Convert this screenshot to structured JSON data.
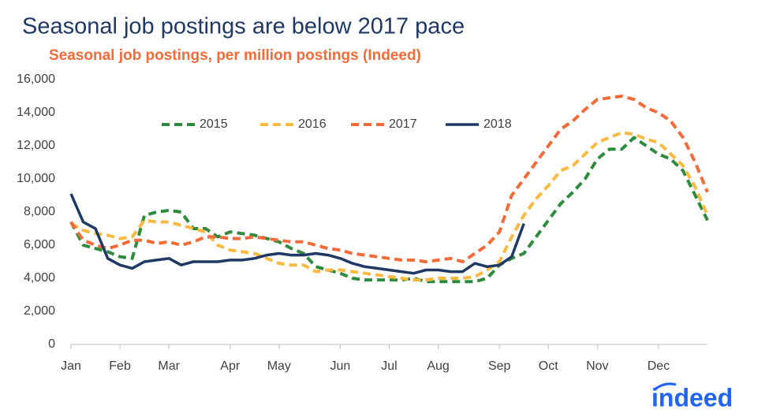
{
  "chart_data": {
    "type": "line",
    "title": "Seasonal job postings are below 2017 pace",
    "subtitle": "Seasonal job postings, per million postings (Indeed)",
    "logo": "indeed",
    "categories": [
      "Jan",
      null,
      null,
      null,
      "Feb",
      null,
      null,
      null,
      "Mar",
      null,
      null,
      null,
      null,
      "Apr",
      null,
      null,
      null,
      "May",
      null,
      null,
      null,
      null,
      "Jun",
      null,
      null,
      null,
      "Jul",
      null,
      null,
      null,
      "Aug",
      null,
      null,
      null,
      null,
      "Sep",
      null,
      null,
      null,
      "Oct",
      null,
      null,
      null,
      "Nov",
      null,
      null,
      null,
      null,
      "Dec",
      null,
      null,
      null,
      null
    ],
    "ylim": [
      0,
      16000
    ],
    "yticks": [
      0,
      {
        "value": 2000,
        "label": "2,000"
      },
      {
        "value": 4000,
        "label": "4,000"
      },
      {
        "value": 6000,
        "label": "6,000"
      },
      {
        "value": 8000,
        "label": "8,000"
      },
      {
        "value": 10000,
        "label": "10,000"
      },
      {
        "value": 12000,
        "label": "12,000"
      },
      {
        "value": 14000,
        "label": "14,000"
      },
      {
        "value": 16000,
        "label": "16,000"
      }
    ],
    "grid": false,
    "legend": "top",
    "series": [
      {
        "name": "2015",
        "color": "#2e8b3e",
        "dashed": true,
        "values": [
          7400,
          6000,
          5800,
          5600,
          5300,
          5200,
          7800,
          8000,
          8100,
          8000,
          7000,
          7000,
          6500,
          6800,
          6700,
          6600,
          6400,
          6200,
          5800,
          5500,
          4700,
          4500,
          4300,
          4000,
          3900,
          3900,
          3900,
          3900,
          4000,
          3800,
          3800,
          3800,
          3800,
          3800,
          4000,
          4800,
          5200,
          5500,
          6500,
          7500,
          8500,
          9200,
          10000,
          11200,
          11800,
          11800,
          12500,
          12000,
          11500,
          11200,
          10500,
          9000,
          7500
        ]
      },
      {
        "name": "2016",
        "color": "#fbb93f",
        "dashed": true,
        "values": [
          7300,
          6900,
          6700,
          6600,
          6400,
          6500,
          7500,
          7400,
          7400,
          7200,
          7000,
          6800,
          6000,
          5700,
          5600,
          5500,
          5200,
          4900,
          4800,
          4800,
          4400,
          4500,
          4500,
          4400,
          4300,
          4200,
          4100,
          4000,
          3900,
          3900,
          4000,
          4000,
          4000,
          4100,
          4500,
          5000,
          6500,
          7800,
          8800,
          9600,
          10500,
          10800,
          11500,
          12200,
          12500,
          12800,
          12700,
          12400,
          12200,
          11500,
          10800,
          9500,
          7800
        ]
      },
      {
        "name": "2017",
        "color": "#f26b38",
        "dashed": true,
        "values": [
          7400,
          6300,
          6000,
          5800,
          6000,
          6300,
          6300,
          6100,
          6200,
          6000,
          6200,
          6500,
          6500,
          6400,
          6400,
          6500,
          6400,
          6300,
          6200,
          6200,
          6000,
          5800,
          5700,
          5500,
          5400,
          5300,
          5200,
          5100,
          5100,
          5000,
          5100,
          5200,
          5000,
          5500,
          6000,
          6800,
          9000,
          10000,
          11000,
          12000,
          13000,
          13500,
          14200,
          14800,
          14900,
          15000,
          14800,
          14300,
          14000,
          13500,
          12500,
          11000,
          9200
        ]
      },
      {
        "name": "2018",
        "color": "#1f3864",
        "dashed": false,
        "values": [
          9100,
          7400,
          7000,
          5200,
          4800,
          4600,
          5000,
          5100,
          5200,
          4800,
          5000,
          5000,
          5000,
          5100,
          5100,
          5200,
          5400,
          5500,
          5400,
          5400,
          5500,
          5400,
          5200,
          4900,
          4700,
          4600,
          4500,
          4400,
          4300,
          4500,
          4500,
          4400,
          4400,
          4900,
          4700,
          4800,
          5300,
          7300,
          null,
          null,
          null,
          null,
          null,
          null,
          null,
          null,
          null,
          null,
          null,
          null,
          null,
          null,
          null
        ]
      }
    ]
  }
}
